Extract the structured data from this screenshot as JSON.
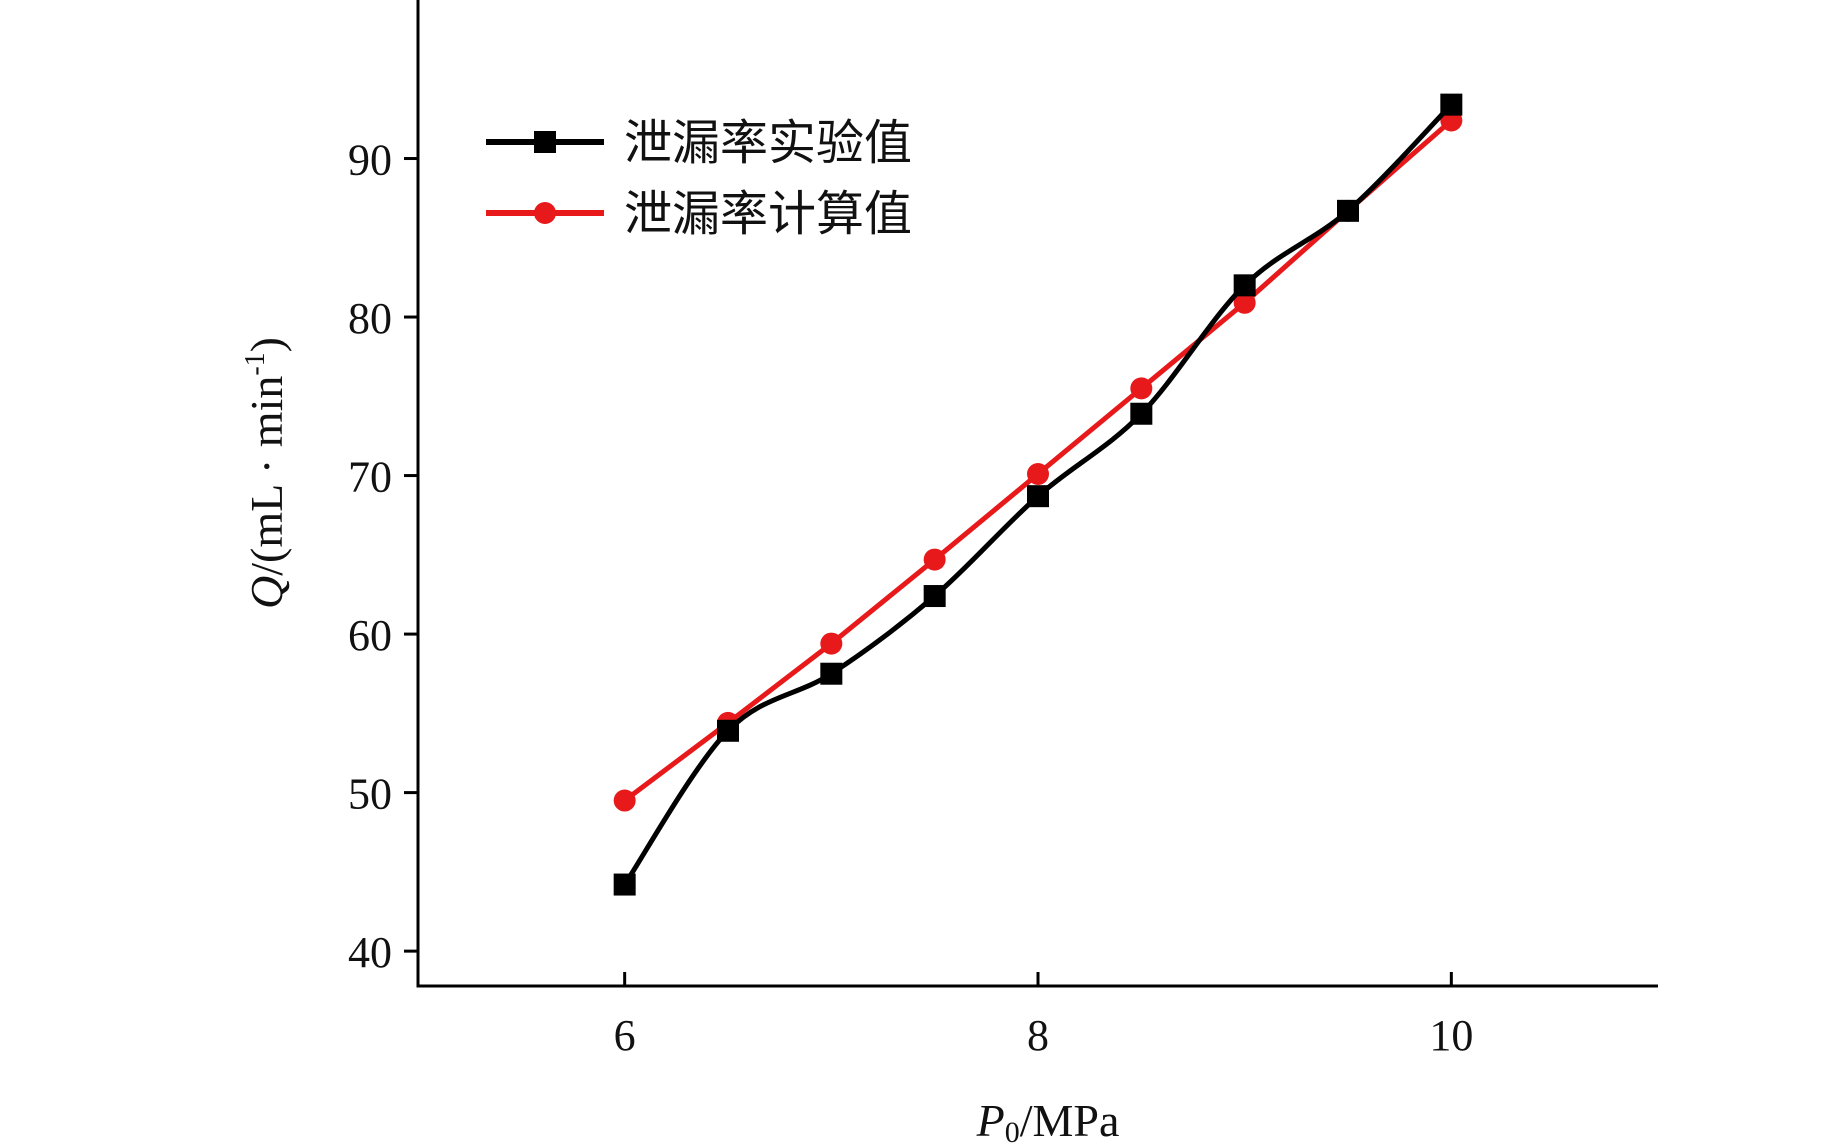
{
  "chart_data": {
    "type": "line",
    "xlabel": {
      "main": "P",
      "sub": "0",
      "rest": "/MPa"
    },
    "ylabel": {
      "main": "Q",
      "rest": "/(mL · min",
      "sup": "-1",
      "close": ")"
    },
    "xlim": [
      5,
      11
    ],
    "ylim": [
      37.8,
      100
    ],
    "x_ticks": [
      6,
      8,
      10
    ],
    "y_ticks": [
      40,
      50,
      60,
      70,
      80,
      90
    ],
    "grid": false,
    "legend_position": "top-left",
    "series": [
      {
        "name": "泄漏率实验值",
        "color": "#000000",
        "marker": "square",
        "smooth": true,
        "x": [
          6,
          6.5,
          7,
          7.5,
          8,
          8.5,
          9,
          9.5,
          10
        ],
        "y": [
          44.2,
          53.9,
          57.5,
          62.4,
          68.7,
          73.9,
          82.0,
          86.7,
          93.4
        ]
      },
      {
        "name": "泄漏率计算值",
        "color": "#e8191b",
        "marker": "circle",
        "smooth": false,
        "x": [
          6,
          6.5,
          7,
          7.5,
          8,
          8.5,
          9,
          9.5,
          10
        ],
        "y": [
          49.5,
          54.4,
          59.4,
          64.7,
          70.1,
          75.5,
          80.9,
          86.7,
          92.4
        ]
      }
    ]
  }
}
